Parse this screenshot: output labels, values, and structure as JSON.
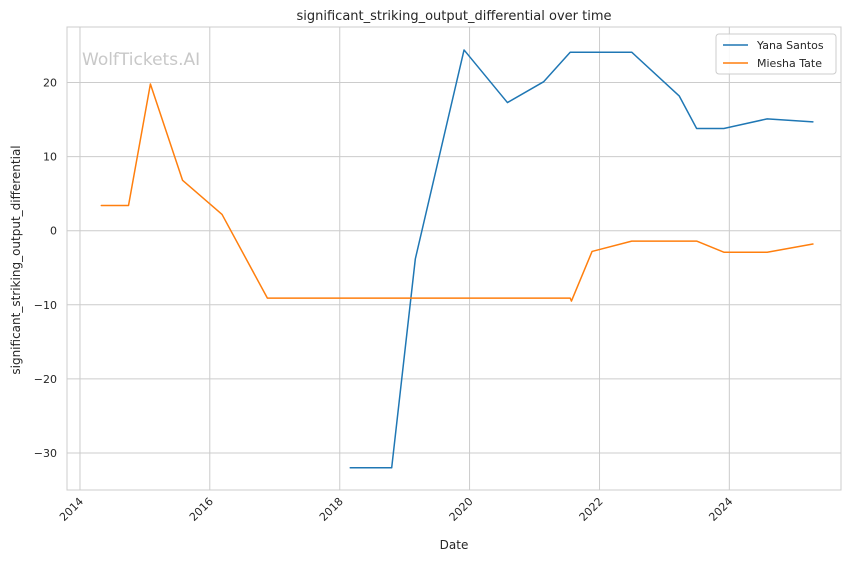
{
  "chart_data": {
    "type": "line",
    "title": "significant_striking_output_differential over time",
    "xlabel": "Date",
    "ylabel": "significant_striking_output_differential",
    "watermark": "WolfTickets.AI",
    "x_ticks": [
      "2014",
      "2016",
      "2018",
      "2020",
      "2022",
      "2024"
    ],
    "y_ticks": [
      "−30",
      "−20",
      "−10",
      "0",
      "10",
      "20"
    ],
    "xlim": [
      "2013-10-20",
      "2025-09-20"
    ],
    "ylim": [
      -35,
      27.5
    ],
    "grid": true,
    "legend_position": "top-right",
    "series": [
      {
        "name": "Yana Santos",
        "color": "#1f77b4",
        "points": [
          [
            "2018-03-01",
            -32
          ],
          [
            "2018-10-20",
            -32
          ],
          [
            "2019-03-02",
            -3.8
          ],
          [
            "2019-12-01",
            24.4
          ],
          [
            "2020-08-01",
            17.3
          ],
          [
            "2021-02-20",
            20.1
          ],
          [
            "2021-07-20",
            24.1
          ],
          [
            "2022-07-01",
            24.1
          ],
          [
            "2023-03-25",
            18.2
          ],
          [
            "2023-07-01",
            13.8
          ],
          [
            "2023-12-01",
            13.8
          ],
          [
            "2024-08-01",
            15.1
          ],
          [
            "2025-04-15",
            14.7
          ]
        ]
      },
      {
        "name": "Miesha Tate",
        "color": "#ff7f0e",
        "points": [
          [
            "2014-05-01",
            3.4
          ],
          [
            "2014-10-01",
            3.4
          ],
          [
            "2015-02-01",
            19.8
          ],
          [
            "2015-08-01",
            6.8
          ],
          [
            "2016-03-10",
            2.2
          ],
          [
            "2016-11-20",
            -9.1
          ],
          [
            "2021-07-20",
            -9.1
          ],
          [
            "2021-07-27",
            -9.5
          ],
          [
            "2021-11-20",
            -2.8
          ],
          [
            "2022-07-01",
            -1.4
          ],
          [
            "2023-07-01",
            -1.4
          ],
          [
            "2023-12-01",
            -2.9
          ],
          [
            "2024-08-01",
            -2.9
          ],
          [
            "2025-04-15",
            -1.8
          ]
        ]
      }
    ]
  }
}
